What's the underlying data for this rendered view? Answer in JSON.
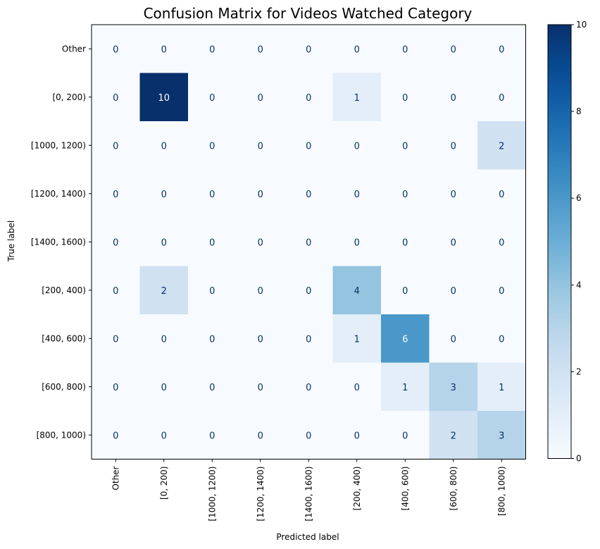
{
  "chart_data": {
    "type": "heatmap",
    "title": "Confusion Matrix for Videos Watched Category",
    "xlabel": "Predicted label",
    "ylabel": "True label",
    "labels": [
      "Other",
      "[0, 200)",
      "[1000, 1200)",
      "[1200, 1400)",
      "[1400, 1600)",
      "[200, 400)",
      "[400, 600)",
      "[600, 800)",
      "[800, 1000)"
    ],
    "matrix": [
      [
        0,
        0,
        0,
        0,
        0,
        0,
        0,
        0,
        0
      ],
      [
        0,
        10,
        0,
        0,
        0,
        1,
        0,
        0,
        0
      ],
      [
        0,
        0,
        0,
        0,
        0,
        0,
        0,
        0,
        2
      ],
      [
        0,
        0,
        0,
        0,
        0,
        0,
        0,
        0,
        0
      ],
      [
        0,
        0,
        0,
        0,
        0,
        0,
        0,
        0,
        0
      ],
      [
        0,
        2,
        0,
        0,
        0,
        4,
        0,
        0,
        0
      ],
      [
        0,
        0,
        0,
        0,
        0,
        1,
        6,
        0,
        0
      ],
      [
        0,
        0,
        0,
        0,
        0,
        0,
        1,
        3,
        1
      ],
      [
        0,
        0,
        0,
        0,
        0,
        0,
        0,
        2,
        3
      ]
    ],
    "colorscale": "Blues",
    "vmin": 0,
    "vmax": 10,
    "colorbar_ticks": [
      0,
      2,
      4,
      6,
      8,
      10
    ]
  }
}
